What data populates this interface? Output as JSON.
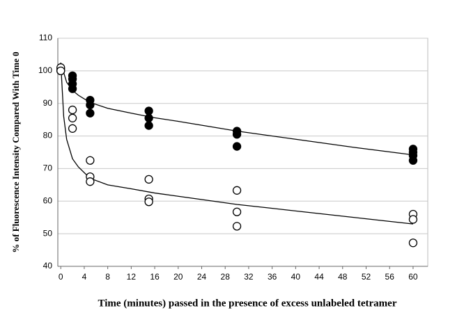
{
  "chart_data": {
    "type": "scatter",
    "x_label": "Time (minutes) passed in the presence of excess unlabeled tetramer",
    "y_label": "% of Fluorescence Intensity Compared With Time 0",
    "xlim": [
      -0.5,
      62.5
    ],
    "ylim": [
      40,
      110
    ],
    "xticks": [
      0,
      4,
      8,
      12,
      16,
      20,
      24,
      28,
      32,
      36,
      40,
      44,
      48,
      52,
      56,
      60
    ],
    "yticks": [
      40,
      50,
      60,
      70,
      80,
      90,
      100,
      110
    ],
    "grid": true,
    "series": [
      {
        "type": "scatter",
        "marker": "filled",
        "color": "#000000",
        "x": [
          0,
          0,
          2,
          2,
          2,
          2,
          5,
          5,
          5,
          15,
          15,
          15,
          30,
          30,
          30,
          60,
          60,
          60,
          60
        ],
        "values": [
          100,
          100.5,
          98.5,
          97.5,
          96,
          94.5,
          91,
          89.5,
          87,
          87.7,
          85.5,
          83.2,
          81.5,
          80.5,
          76.8,
          76,
          75,
          74,
          72.5
        ]
      },
      {
        "type": "scatter",
        "marker": "open",
        "color": "#000000",
        "x": [
          0,
          0,
          2,
          2,
          2,
          5,
          5,
          5,
          15,
          15,
          15,
          30,
          30,
          30,
          60,
          60,
          60
        ],
        "values": [
          101,
          100,
          88,
          85.5,
          82.3,
          72.5,
          67.5,
          66,
          66.7,
          60.7,
          59.8,
          63.3,
          56.7,
          52.3,
          56,
          54.4,
          47.2
        ]
      },
      {
        "type": "line",
        "color": "#000000",
        "x": [
          0,
          1,
          2,
          3,
          5,
          8,
          12,
          16,
          20,
          30,
          40,
          50,
          60
        ],
        "values": [
          102.5,
          96.5,
          94,
          92.5,
          90.3,
          88.5,
          87,
          85.6,
          84.5,
          81.5,
          79,
          76.5,
          74.2
        ]
      },
      {
        "type": "line",
        "color": "#000000",
        "x": [
          0,
          0.5,
          1,
          2,
          3,
          5,
          8,
          12,
          16,
          20,
          30,
          40,
          50,
          60
        ],
        "values": [
          102.5,
          86,
          79,
          73,
          70.5,
          67,
          65,
          63.8,
          62.5,
          61.5,
          59,
          57,
          55,
          53
        ]
      }
    ]
  }
}
